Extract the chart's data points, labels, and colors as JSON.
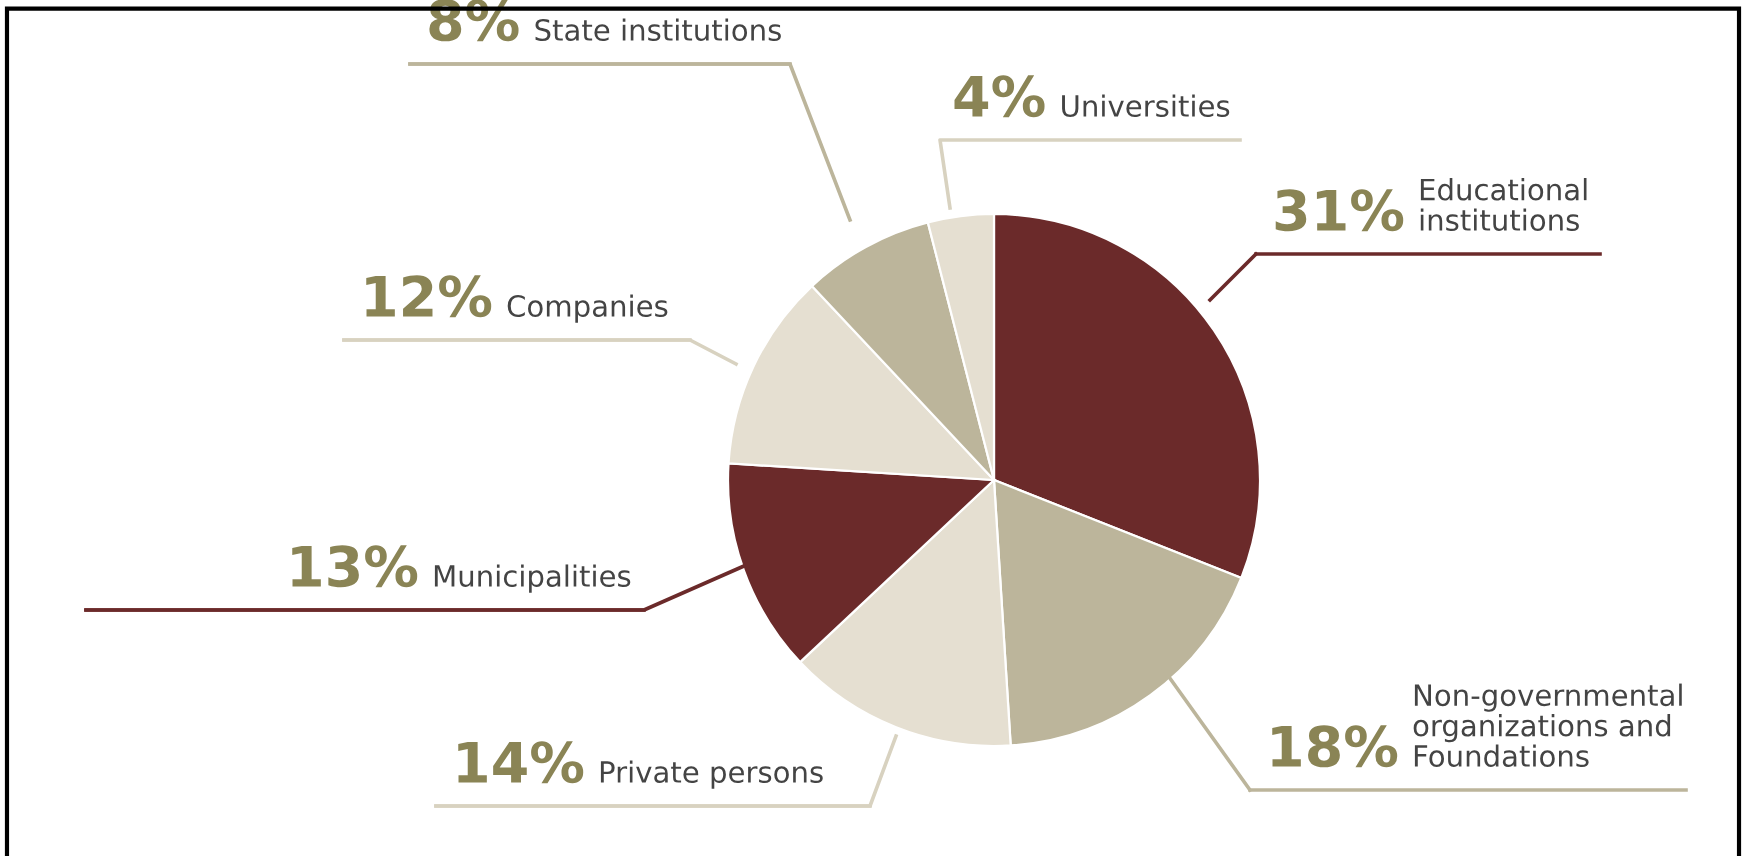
{
  "chart_data": {
    "type": "pie",
    "categories": [
      "Educational\ninstitutions",
      "Non-governmental\norganizations and\nFoundations",
      "Private persons",
      "Municipalities",
      "Companies",
      "State institutions",
      "Universities"
    ],
    "values": [
      31,
      18,
      14,
      13,
      12,
      8,
      4
    ],
    "value_labels": [
      "31%",
      "18%",
      "14%",
      "13%",
      "12%",
      "8%",
      "4%"
    ],
    "colors": [
      "#6b2a2a",
      "#bcb59b",
      "#e5dfd1",
      "#6b2a2a",
      "#e5dfd1",
      "#bcb59b",
      "#e5dfd1"
    ]
  }
}
